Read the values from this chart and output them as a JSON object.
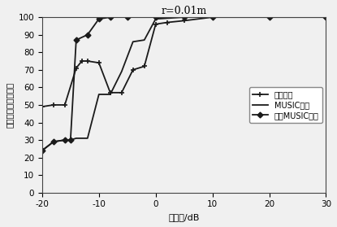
{
  "title": "r=0.01m",
  "xlabel": "信噪比/dB",
  "ylabel": "方位估计的成功概率",
  "xlim": [
    -20,
    30
  ],
  "ylim": [
    0,
    100
  ],
  "xticks": [
    -20,
    -10,
    0,
    10,
    20,
    30
  ],
  "yticks": [
    0,
    10,
    20,
    30,
    40,
    50,
    60,
    70,
    80,
    90,
    100
  ],
  "line1_label": "复声强法",
  "line2_label": "MUSIC算法",
  "line3_label": "修正MUSIC算法",
  "line1_x": [
    -20,
    -18,
    -16,
    -14,
    -13,
    -12,
    -10,
    -8,
    -6,
    -4,
    -2,
    0,
    2,
    5,
    10,
    20,
    30
  ],
  "line1_y": [
    49,
    50,
    50,
    71,
    75,
    75,
    74,
    57,
    57,
    70,
    72,
    96,
    97,
    98,
    100,
    100,
    100
  ],
  "line2_x": [
    -20,
    -18,
    -16,
    -15,
    -14,
    -12,
    -10,
    -8,
    -6,
    -4,
    -2,
    0,
    5,
    10,
    20,
    30
  ],
  "line2_y": [
    24,
    29,
    30,
    30,
    31,
    31,
    56,
    56,
    69,
    86,
    87,
    99,
    100,
    100,
    100,
    100
  ],
  "line3_x": [
    -20,
    -18,
    -16,
    -15,
    -14,
    -12,
    -10,
    -8,
    -5,
    0,
    5,
    10,
    20,
    30
  ],
  "line3_y": [
    24,
    29,
    30,
    30,
    87,
    90,
    99,
    100,
    100,
    100,
    100,
    100,
    100,
    100
  ],
  "color": "#1a1a1a",
  "bg_color": "#f0f0f0"
}
